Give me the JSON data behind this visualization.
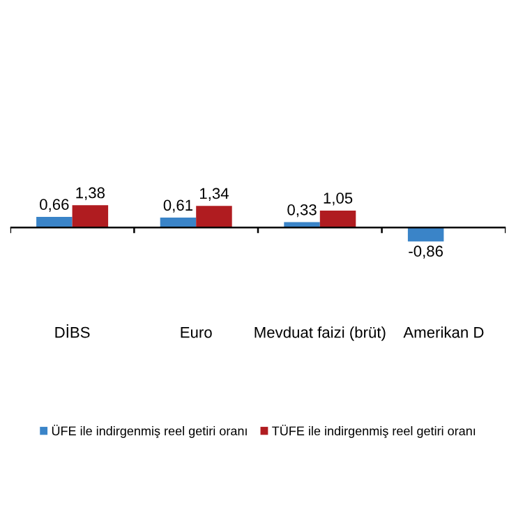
{
  "chart_data": {
    "type": "bar",
    "categories": [
      "DİBS",
      "Euro",
      "Mevduat faizi (brüt)",
      "Amerikan D"
    ],
    "series": [
      {
        "name": "ÜFE ile indirgenmiş reel getiri oranı",
        "color": "#3a84c8",
        "values": [
          0.66,
          0.61,
          0.33,
          -0.86
        ],
        "value_labels": [
          "0,66",
          "0,61",
          "0,33",
          "-0,86"
        ]
      },
      {
        "name": "TÜFE ile indirgenmiş reel getiri oranı",
        "color": "#b01c20",
        "values": [
          1.38,
          1.34,
          1.05,
          null
        ],
        "value_labels": [
          "1,38",
          "1,34",
          "1,05",
          null
        ]
      }
    ],
    "legend": "bottom"
  }
}
